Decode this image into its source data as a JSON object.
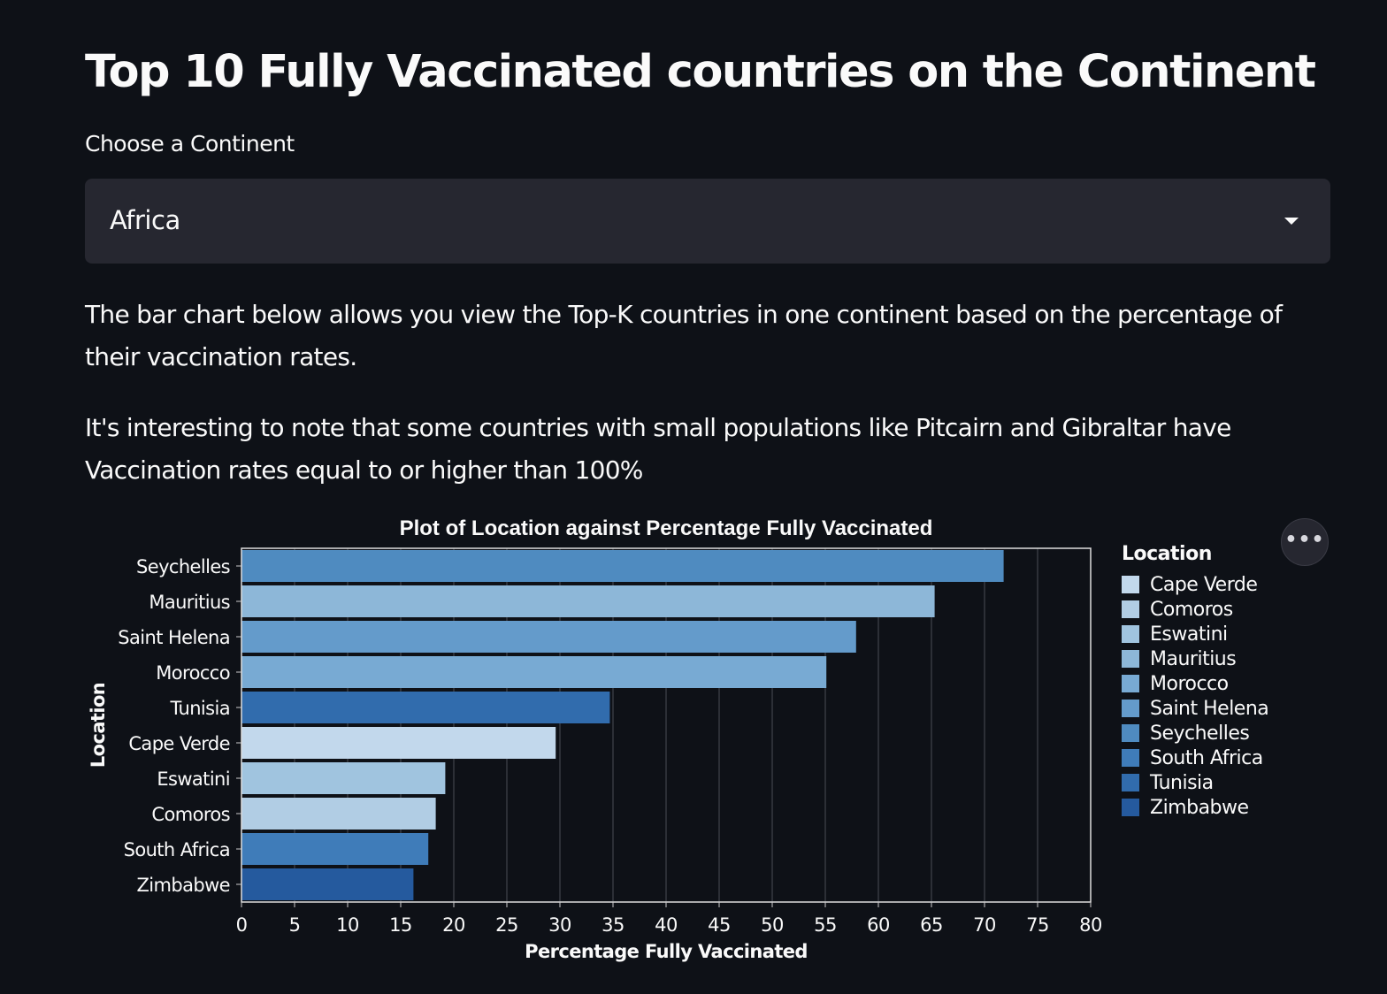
{
  "header": {
    "title": "Top 10 Fully Vaccinated countries on the Continent"
  },
  "continent_select": {
    "label": "Choose a Continent",
    "value": "Africa"
  },
  "description": {
    "paragraph1": "The bar chart below allows you view the Top-K countries in one continent based on the percentage of their vaccination rates.",
    "paragraph2": "It's interesting to note that some countries with small populations like Pitcairn and Gibraltar have Vaccination rates equal to or higher than 100%"
  },
  "chart_menu": {
    "icon": "more-horizontal-icon",
    "glyph": "•••"
  },
  "legend": {
    "title": "Location",
    "items": [
      {
        "label": "Cape Verde",
        "color": "#c2d8ec"
      },
      {
        "label": "Comoros",
        "color": "#b1cde4"
      },
      {
        "label": "Eswatini",
        "color": "#a0c4df"
      },
      {
        "label": "Mauritius",
        "color": "#8db7d8"
      },
      {
        "label": "Morocco",
        "color": "#78aad3"
      },
      {
        "label": "Saint Helena",
        "color": "#649bcb"
      },
      {
        "label": "Seychelles",
        "color": "#4f8bc0"
      },
      {
        "label": "South Africa",
        "color": "#3f7cb9"
      },
      {
        "label": "Tunisia",
        "color": "#316cad"
      },
      {
        "label": "Zimbabwe",
        "color": "#255a9e"
      }
    ]
  },
  "chart_data": {
    "type": "bar",
    "orientation": "horizontal",
    "title": "Plot of Location against Percentage Fully Vaccinated",
    "xlabel": "Percentage Fully Vaccinated",
    "ylabel": "Location",
    "xlim": [
      0,
      80
    ],
    "x_ticks": [
      0,
      5,
      10,
      15,
      20,
      25,
      30,
      35,
      40,
      45,
      50,
      55,
      60,
      65,
      70,
      75,
      80
    ],
    "grid": true,
    "legend_position": "right",
    "categories": [
      "Seychelles",
      "Mauritius",
      "Saint Helena",
      "Morocco",
      "Tunisia",
      "Cape Verde",
      "Eswatini",
      "Comoros",
      "South Africa",
      "Zimbabwe"
    ],
    "values": [
      71.8,
      65.3,
      57.9,
      55.1,
      34.7,
      29.6,
      19.2,
      18.3,
      17.6,
      16.2
    ]
  }
}
